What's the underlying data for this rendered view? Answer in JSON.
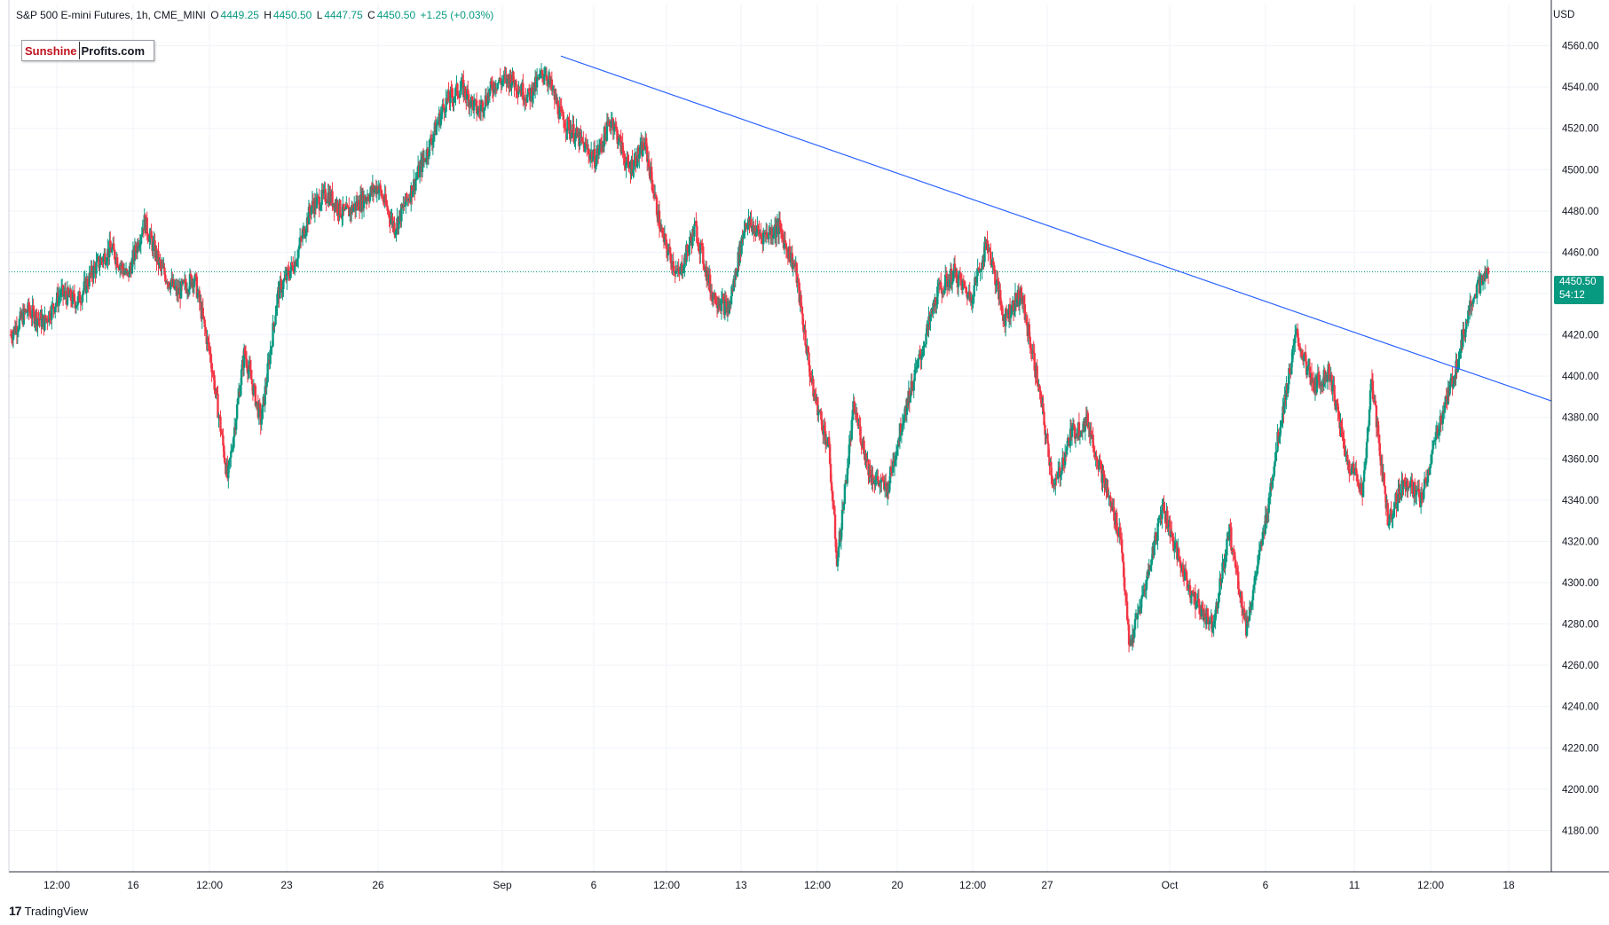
{
  "header": {
    "symbol": "S&P 500 E-mini Futures, 1h, CME_MINI",
    "open_label": "O",
    "open": "4449.25",
    "high_label": "H",
    "high": "4450.50",
    "low_label": "L",
    "low": "4447.75",
    "close_label": "C",
    "close": "4450.50",
    "change": "+1.25 (+0.03%)"
  },
  "brand": {
    "part1": "Sunshine",
    "part2": "Profits.com"
  },
  "currency": "USD",
  "price_tag": {
    "price": "4450.50",
    "countdown": "54:12"
  },
  "footer": {
    "logo_mark": "17",
    "logo_text": "TradingView"
  },
  "colors": {
    "up": "#089981",
    "down": "#f23645",
    "trendline": "#2962ff",
    "grid": "#f0f3fa"
  },
  "chart_data": {
    "type": "candlestick",
    "title": "S&P 500 E-mini Futures, 1h, CME_MINI",
    "ylim": [
      4160,
      4580
    ],
    "y_ticks": [
      4180,
      4200,
      4220,
      4240,
      4260,
      4280,
      4300,
      4320,
      4340,
      4360,
      4380,
      4400,
      4420,
      4440,
      4460,
      4480,
      4500,
      4520,
      4540,
      4560
    ],
    "x_ticks": [
      "12:00",
      "16",
      "12:00",
      "23",
      "26",
      "Sep",
      "6",
      "12:00",
      "13",
      "12:00",
      "20",
      "12:00",
      "27",
      "Oct",
      "6",
      "11",
      "12:00",
      "18"
    ],
    "last_price": 4450.5,
    "price_path": [
      [
        0,
        4420
      ],
      [
        2,
        4432
      ],
      [
        4,
        4426
      ],
      [
        6,
        4440
      ],
      [
        8,
        4436
      ],
      [
        10,
        4452
      ],
      [
        12,
        4462
      ],
      [
        14,
        4448
      ],
      [
        16,
        4475
      ],
      [
        18,
        4452
      ],
      [
        20,
        4440
      ],
      [
        22,
        4448
      ],
      [
        24,
        4408
      ],
      [
        26,
        4350
      ],
      [
        28,
        4412
      ],
      [
        30,
        4378
      ],
      [
        32,
        4440
      ],
      [
        34,
        4455
      ],
      [
        36,
        4482
      ],
      [
        38,
        4488
      ],
      [
        40,
        4478
      ],
      [
        42,
        4485
      ],
      [
        44,
        4492
      ],
      [
        46,
        4472
      ],
      [
        48,
        4490
      ],
      [
        50,
        4510
      ],
      [
        52,
        4532
      ],
      [
        54,
        4540
      ],
      [
        56,
        4528
      ],
      [
        58,
        4542
      ],
      [
        60,
        4544
      ],
      [
        62,
        4535
      ],
      [
        64,
        4548
      ],
      [
        66,
        4525
      ],
      [
        68,
        4515
      ],
      [
        70,
        4505
      ],
      [
        72,
        4525
      ],
      [
        74,
        4500
      ],
      [
        76,
        4512
      ],
      [
        78,
        4468
      ],
      [
        80,
        4448
      ],
      [
        82,
        4472
      ],
      [
        84,
        4440
      ],
      [
        86,
        4432
      ],
      [
        88,
        4475
      ],
      [
        90,
        4468
      ],
      [
        92,
        4472
      ],
      [
        94,
        4452
      ],
      [
        96,
        4395
      ],
      [
        98,
        4365
      ],
      [
        99,
        4310
      ],
      [
        101,
        4385
      ],
      [
        103,
        4352
      ],
      [
        105,
        4345
      ],
      [
        107,
        4382
      ],
      [
        109,
        4410
      ],
      [
        111,
        4440
      ],
      [
        113,
        4450
      ],
      [
        115,
        4438
      ],
      [
        117,
        4465
      ],
      [
        119,
        4428
      ],
      [
        121,
        4440
      ],
      [
        123,
        4398
      ],
      [
        125,
        4345
      ],
      [
        127,
        4372
      ],
      [
        129,
        4378
      ],
      [
        131,
        4348
      ],
      [
        133,
        4322
      ],
      [
        134,
        4268
      ],
      [
        136,
        4300
      ],
      [
        138,
        4338
      ],
      [
        140,
        4310
      ],
      [
        142,
        4290
      ],
      [
        144,
        4280
      ],
      [
        146,
        4325
      ],
      [
        148,
        4278
      ],
      [
        150,
        4322
      ],
      [
        152,
        4375
      ],
      [
        154,
        4420
      ],
      [
        156,
        4395
      ],
      [
        158,
        4402
      ],
      [
        160,
        4360
      ],
      [
        162,
        4345
      ],
      [
        163,
        4398
      ],
      [
        165,
        4330
      ],
      [
        167,
        4350
      ],
      [
        169,
        4340
      ],
      [
        171,
        4375
      ],
      [
        173,
        4402
      ],
      [
        175,
        4438
      ],
      [
        177,
        4450.5
      ]
    ],
    "trendline": {
      "start": [
        4555,
        4455
      ],
      "end": [
        4472,
        4388
      ]
    }
  }
}
